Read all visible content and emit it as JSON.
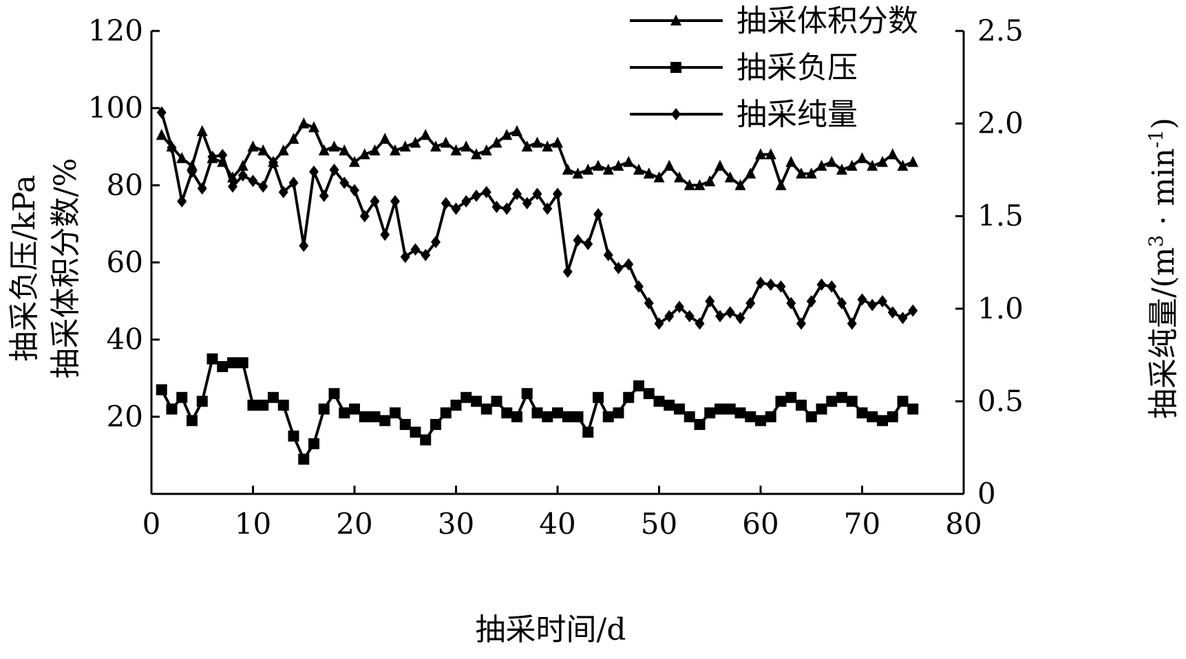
{
  "chart_data": {
    "type": "line",
    "x_axis": {
      "label": "抽采时间/d",
      "range": [
        0,
        80
      ],
      "ticks": [
        0,
        10,
        20,
        30,
        40,
        50,
        60,
        70,
        80
      ]
    },
    "y_left": {
      "label_line1": "抽采负压/kPa",
      "label_line2": "抽采体积分数/%",
      "range": [
        0,
        120
      ],
      "ticks": [
        20,
        40,
        60,
        80,
        100,
        120
      ]
    },
    "y_right": {
      "label_prefix": "抽采纯量/(m",
      "label_sup1": "3",
      "label_mid": " · min",
      "label_sup2": "-1",
      "label_suffix": ")",
      "range": [
        0,
        2.5
      ],
      "ticks": [
        "0",
        "0.5",
        "1.0",
        "1.5",
        "2.0",
        "2.5"
      ],
      "tick_values": [
        0,
        0.5,
        1.0,
        1.5,
        2.0,
        2.5
      ]
    },
    "legend_position": "top-right",
    "series": [
      {
        "name": "抽采体积分数",
        "marker": "triangle",
        "axis": "left",
        "x": [
          1,
          2,
          3,
          4,
          5,
          6,
          7,
          8,
          9,
          10,
          11,
          12,
          13,
          14,
          15,
          16,
          17,
          18,
          19,
          20,
          21,
          22,
          23,
          24,
          25,
          26,
          27,
          28,
          29,
          30,
          31,
          32,
          33,
          34,
          35,
          36,
          37,
          38,
          39,
          40,
          41,
          42,
          43,
          44,
          45,
          46,
          47,
          48,
          49,
          50,
          51,
          52,
          53,
          54,
          55,
          56,
          57,
          58,
          59,
          60,
          61,
          62,
          63,
          64,
          65,
          66,
          67,
          68,
          69,
          70,
          71,
          72,
          73,
          74,
          75
        ],
        "values": [
          93,
          90,
          87,
          85,
          94,
          87,
          86,
          82,
          85,
          90,
          89,
          86,
          89,
          92,
          96,
          95,
          89,
          90,
          89,
          86,
          88,
          89,
          92,
          89,
          90,
          91,
          93,
          90,
          91,
          89,
          90,
          88,
          89,
          91,
          93,
          94,
          90,
          91,
          90,
          91,
          84,
          83,
          84,
          85,
          84,
          85,
          86,
          84,
          83,
          82,
          85,
          82,
          80,
          80,
          81,
          85,
          82,
          80,
          83,
          88,
          88,
          80,
          86,
          83,
          83,
          85,
          86,
          84,
          85,
          87,
          85,
          86,
          88,
          85,
          86
        ]
      },
      {
        "name": "抽采负压",
        "marker": "square",
        "axis": "left",
        "x": [
          1,
          2,
          3,
          4,
          5,
          6,
          7,
          8,
          9,
          10,
          11,
          12,
          13,
          14,
          15,
          16,
          17,
          18,
          19,
          20,
          21,
          22,
          23,
          24,
          25,
          26,
          27,
          28,
          29,
          30,
          31,
          32,
          33,
          34,
          35,
          36,
          37,
          38,
          39,
          40,
          41,
          42,
          43,
          44,
          45,
          46,
          47,
          48,
          49,
          50,
          51,
          52,
          53,
          54,
          55,
          56,
          57,
          58,
          59,
          60,
          61,
          62,
          63,
          64,
          65,
          66,
          67,
          68,
          69,
          70,
          71,
          72,
          73,
          74,
          75
        ],
        "values": [
          27,
          22,
          25,
          19,
          24,
          35,
          33,
          34,
          34,
          23,
          23,
          25,
          23,
          15,
          9,
          13,
          22,
          26,
          21,
          22,
          20,
          20,
          19,
          21,
          18,
          16,
          14,
          18,
          21,
          23,
          25,
          24,
          22,
          24,
          21,
          20,
          26,
          21,
          20,
          21,
          20,
          20,
          16,
          25,
          20,
          21,
          25,
          28,
          26,
          24,
          23,
          22,
          20,
          18,
          21,
          22,
          22,
          21,
          20,
          19,
          20,
          24,
          25,
          23,
          20,
          22,
          24,
          25,
          24,
          21,
          20,
          19,
          20,
          24,
          22
        ]
      },
      {
        "name": "抽采纯量",
        "marker": "diamond",
        "axis": "right",
        "x": [
          1,
          2,
          3,
          4,
          5,
          6,
          7,
          8,
          9,
          10,
          11,
          12,
          13,
          14,
          15,
          16,
          17,
          18,
          19,
          20,
          21,
          22,
          23,
          24,
          25,
          26,
          27,
          28,
          29,
          30,
          31,
          32,
          33,
          34,
          35,
          36,
          37,
          38,
          39,
          40,
          41,
          42,
          43,
          44,
          45,
          46,
          47,
          48,
          49,
          50,
          51,
          52,
          53,
          54,
          55,
          56,
          57,
          58,
          59,
          60,
          61,
          62,
          63,
          64,
          65,
          66,
          67,
          68,
          69,
          70,
          71,
          72,
          73,
          74,
          75
        ],
        "values": [
          2.06,
          1.87,
          1.58,
          1.74,
          1.65,
          1.82,
          1.83,
          1.66,
          1.72,
          1.69,
          1.66,
          1.79,
          1.63,
          1.68,
          1.34,
          1.74,
          1.61,
          1.75,
          1.68,
          1.64,
          1.5,
          1.58,
          1.4,
          1.58,
          1.28,
          1.32,
          1.29,
          1.36,
          1.57,
          1.54,
          1.58,
          1.61,
          1.63,
          1.55,
          1.54,
          1.62,
          1.57,
          1.62,
          1.54,
          1.62,
          1.2,
          1.37,
          1.35,
          1.51,
          1.29,
          1.22,
          1.24,
          1.12,
          1.03,
          0.92,
          0.96,
          1.01,
          0.96,
          0.92,
          1.04,
          0.96,
          0.98,
          0.95,
          1.03,
          1.14,
          1.13,
          1.12,
          1.03,
          0.92,
          1.04,
          1.13,
          1.12,
          1.03,
          0.92,
          1.05,
          1.02,
          1.04,
          0.98,
          0.95,
          0.99
        ]
      }
    ]
  }
}
